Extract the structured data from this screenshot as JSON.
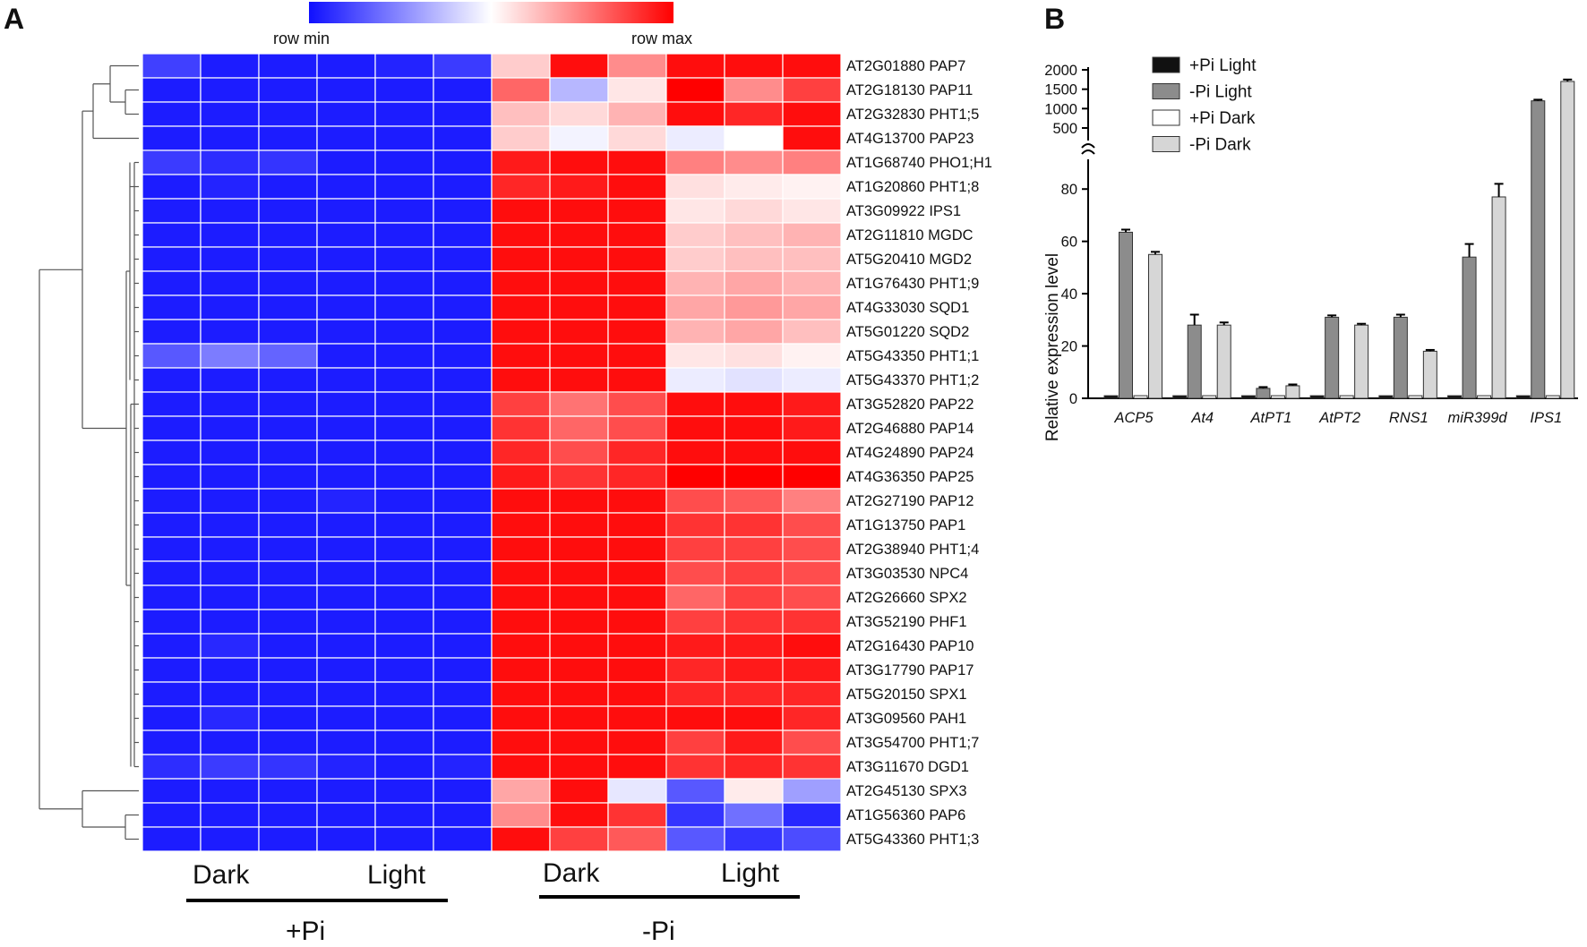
{
  "panel_a": {
    "letter": "A",
    "colorbar": {
      "min_label": "row  min",
      "max_label": "row  max",
      "low_color": "#1010ff",
      "mid_color": "#ffffff",
      "high_color": "#ff0000"
    },
    "lower_labels": {
      "pi_plus_dark": "Dark",
      "pi_plus_light": "Light",
      "pi_minus_dark": "Dark",
      "pi_minus_light": "Light",
      "pi_plus": "+Pi",
      "pi_minus": "-Pi"
    }
  },
  "panel_b": {
    "letter": "B",
    "ylabel": "Relative expression level",
    "legend": [
      "+Pi Light",
      "-Pi Light",
      "+Pi Dark",
      "-Pi Dark"
    ],
    "series_colors": [
      "#111111",
      "#8c8c8c",
      "#ffffff",
      "#d6d6d6"
    ],
    "lower_ticks": [
      "0",
      "20",
      "40",
      "60",
      "80"
    ],
    "upper_ticks": [
      "500",
      "1000",
      "1500",
      "2000"
    ]
  },
  "chart_data": [
    {
      "type": "heatmap",
      "title": "",
      "scale": "row-normalized z-score (-1 = row min, +1 = row max)",
      "columns": [
        "+Pi Dark 1",
        "+Pi Dark 2",
        "+Pi Dark 3",
        "+Pi Light 1",
        "+Pi Light 2",
        "+Pi Light 3",
        "-Pi Dark 1",
        "-Pi Dark 2",
        "-Pi Dark 3",
        "-Pi Light 1",
        "-Pi Light 2",
        "-Pi Light 3"
      ],
      "rows": [
        "AT2G01880 PAP7",
        "AT2G18130 PAP11",
        "AT2G32830 PHT1;5",
        "AT4G13700 PAP23",
        "AT1G68740 PHO1;H1",
        "AT1G20860 PHT1;8",
        "AT3G09922 IPS1",
        "AT2G11810 MGDC",
        "AT5G20410 MGD2",
        "AT1G76430 PHT1;9",
        "AT4G33030 SQD1",
        "AT5G01220 SQD2",
        "AT5G43350 PHT1;1",
        "AT5G43370 PHT1;2",
        "AT3G52820 PAP22",
        "AT2G46880 PAP14",
        "AT4G24890 PAP24",
        "AT4G36350 PAP25",
        "AT2G27190 PAP12",
        "AT1G13750 PAP1",
        "AT2G38940 PHT1;4",
        "AT3G03530 NPC4",
        "AT2G26660 SPX2",
        "AT3G52190 PHF1",
        "AT2G16430 PAP10",
        "AT3G17790 PAP17",
        "AT5G20150 SPX1",
        "AT3G09560 PAH1",
        "AT3G54700 PHT1;7",
        "AT3G11670 DGD1",
        "AT2G45130 SPX3",
        "AT1G56360 PAP6",
        "AT5G43360 PHT1;3"
      ],
      "values": [
        [
          -0.8,
          -0.95,
          -0.95,
          -0.95,
          -0.92,
          -0.82,
          0.2,
          0.95,
          0.45,
          0.95,
          0.95,
          0.95
        ],
        [
          -0.95,
          -0.95,
          -0.95,
          -0.95,
          -0.95,
          -0.95,
          0.6,
          -0.3,
          0.1,
          1,
          0.45,
          0.75
        ],
        [
          -0.95,
          -0.95,
          -0.95,
          -0.95,
          -0.95,
          -0.95,
          0.25,
          0.15,
          0.3,
          0.95,
          0.85,
          0.95
        ],
        [
          -0.95,
          -0.95,
          -0.95,
          -0.95,
          -0.95,
          -0.95,
          0.2,
          -0.05,
          0.15,
          -0.08,
          0,
          0.95
        ],
        [
          -0.82,
          -0.88,
          -0.85,
          -0.95,
          -0.95,
          -0.95,
          0.9,
          0.95,
          0.95,
          0.5,
          0.45,
          0.5
        ],
        [
          -0.95,
          -0.92,
          -0.95,
          -0.95,
          -0.95,
          -0.95,
          0.85,
          0.9,
          0.95,
          0.12,
          0.08,
          0.05
        ],
        [
          -0.95,
          -0.95,
          -0.95,
          -0.95,
          -0.95,
          -0.95,
          0.95,
          0.95,
          0.95,
          0.1,
          0.15,
          0.1
        ],
        [
          -0.95,
          -0.95,
          -0.95,
          -0.95,
          -0.95,
          -0.95,
          0.95,
          0.95,
          0.95,
          0.2,
          0.25,
          0.3
        ],
        [
          -0.95,
          -0.95,
          -0.95,
          -0.95,
          -0.95,
          -0.95,
          0.95,
          0.95,
          0.95,
          0.2,
          0.25,
          0.25
        ],
        [
          -0.95,
          -0.95,
          -0.95,
          -0.95,
          -0.95,
          -0.95,
          0.95,
          0.95,
          0.95,
          0.3,
          0.35,
          0.3
        ],
        [
          -0.95,
          -0.95,
          -0.95,
          -0.95,
          -0.95,
          -0.95,
          0.95,
          0.95,
          0.95,
          0.35,
          0.4,
          0.35
        ],
        [
          -0.95,
          -0.95,
          -0.95,
          -0.95,
          -0.95,
          -0.95,
          0.95,
          0.95,
          0.95,
          0.3,
          0.35,
          0.25
        ],
        [
          -0.7,
          -0.55,
          -0.65,
          -0.95,
          -0.95,
          -0.95,
          0.95,
          0.95,
          0.95,
          0.1,
          0.12,
          0.05
        ],
        [
          -0.95,
          -0.95,
          -0.95,
          -0.95,
          -0.95,
          -0.95,
          0.95,
          0.95,
          0.95,
          -0.08,
          -0.12,
          -0.08
        ],
        [
          -0.95,
          -0.95,
          -0.95,
          -0.95,
          -0.95,
          -0.95,
          0.75,
          0.55,
          0.7,
          0.95,
          0.95,
          0.9
        ],
        [
          -0.95,
          -0.95,
          -0.95,
          -0.95,
          -0.95,
          -0.95,
          0.8,
          0.6,
          0.7,
          0.95,
          0.95,
          0.9
        ],
        [
          -0.95,
          -0.95,
          -0.95,
          -0.95,
          -0.95,
          -0.95,
          0.85,
          0.7,
          0.85,
          0.95,
          0.95,
          0.95
        ],
        [
          -0.95,
          -0.95,
          -0.95,
          -0.95,
          -0.95,
          -0.95,
          0.9,
          0.8,
          0.85,
          1,
          1,
          1
        ],
        [
          -0.95,
          -0.95,
          -0.95,
          -0.92,
          -0.95,
          -0.95,
          0.95,
          0.95,
          0.95,
          0.7,
          0.65,
          0.5
        ],
        [
          -0.95,
          -0.95,
          -0.95,
          -0.95,
          -0.95,
          -0.95,
          0.95,
          0.95,
          0.95,
          0.8,
          0.8,
          0.7
        ],
        [
          -0.95,
          -0.95,
          -0.95,
          -0.95,
          -0.95,
          -0.95,
          0.95,
          0.95,
          0.95,
          0.75,
          0.75,
          0.7
        ],
        [
          -0.95,
          -0.95,
          -0.95,
          -0.95,
          -0.95,
          -0.95,
          0.95,
          0.95,
          0.95,
          0.7,
          0.75,
          0.7
        ],
        [
          -0.95,
          -0.95,
          -0.95,
          -0.95,
          -0.95,
          -0.95,
          0.95,
          0.95,
          0.95,
          0.6,
          0.75,
          0.7
        ],
        [
          -0.95,
          -0.95,
          -0.95,
          -0.95,
          -0.95,
          -0.95,
          0.95,
          0.95,
          0.95,
          0.75,
          0.8,
          0.8
        ],
        [
          -0.95,
          -0.9,
          -0.95,
          -0.95,
          -0.95,
          -0.95,
          0.95,
          0.95,
          0.95,
          0.9,
          0.9,
          0.95
        ],
        [
          -0.95,
          -0.95,
          -0.95,
          -0.95,
          -0.95,
          -0.95,
          0.95,
          0.95,
          0.95,
          0.85,
          0.9,
          0.9
        ],
        [
          -0.95,
          -0.95,
          -0.95,
          -0.95,
          -0.95,
          -0.95,
          0.95,
          0.95,
          0.95,
          0.85,
          0.85,
          0.85
        ],
        [
          -0.95,
          -0.9,
          -0.95,
          -0.95,
          -0.95,
          -0.95,
          0.95,
          0.95,
          0.95,
          0.95,
          0.95,
          0.85
        ],
        [
          -0.95,
          -0.95,
          -0.95,
          -0.95,
          -0.95,
          -0.95,
          0.95,
          0.95,
          0.95,
          0.75,
          0.9,
          0.7
        ],
        [
          -0.88,
          -0.82,
          -0.85,
          -0.92,
          -0.95,
          -0.92,
          0.95,
          0.95,
          0.95,
          0.8,
          0.85,
          0.8
        ],
        [
          -0.95,
          -0.95,
          -0.95,
          -0.95,
          -0.95,
          -0.95,
          0.35,
          0.95,
          -0.1,
          -0.7,
          0.08,
          -0.4
        ],
        [
          -0.95,
          -0.95,
          -0.95,
          -0.95,
          -0.95,
          -0.95,
          0.45,
          0.95,
          0.8,
          -0.85,
          -0.6,
          -0.9
        ],
        [
          -0.95,
          -0.95,
          -0.95,
          -0.95,
          -0.95,
          -0.95,
          0.95,
          0.75,
          0.65,
          -0.7,
          -0.85,
          -0.75
        ]
      ],
      "column_groups": [
        {
          "label": "+Pi",
          "subgroups": [
            "Dark",
            "Light"
          ]
        },
        {
          "label": "-Pi",
          "subgroups": [
            "Dark",
            "Light"
          ]
        }
      ]
    },
    {
      "type": "bar",
      "title": "",
      "xlabel": "",
      "ylabel": "Relative expression level",
      "categories": [
        "ACP5",
        "At4",
        "AtPT1",
        "AtPT2",
        "RNS1",
        "miR399d",
        "IPS1"
      ],
      "series": [
        {
          "name": "+Pi Light",
          "values": [
            1,
            1,
            1,
            1,
            1,
            1,
            1
          ]
        },
        {
          "name": "-Pi Light",
          "values": [
            63.5,
            28,
            3.8,
            31,
            31,
            54,
            1200
          ],
          "errors": [
            1,
            4,
            0.5,
            0.7,
            1,
            5,
            30
          ]
        },
        {
          "name": "+Pi Dark",
          "values": [
            1,
            1,
            1,
            1,
            1,
            1,
            1
          ]
        },
        {
          "name": "-Pi Dark",
          "values": [
            55,
            28,
            4.8,
            28,
            18,
            77,
            1700
          ],
          "errors": [
            1,
            1,
            0.5,
            0.5,
            0.5,
            5,
            50
          ]
        }
      ],
      "axis_break": true,
      "ylim_lower": [
        0,
        90
      ],
      "ylim_upper": [
        500,
        2000
      ],
      "legend_position": "top-left"
    }
  ]
}
